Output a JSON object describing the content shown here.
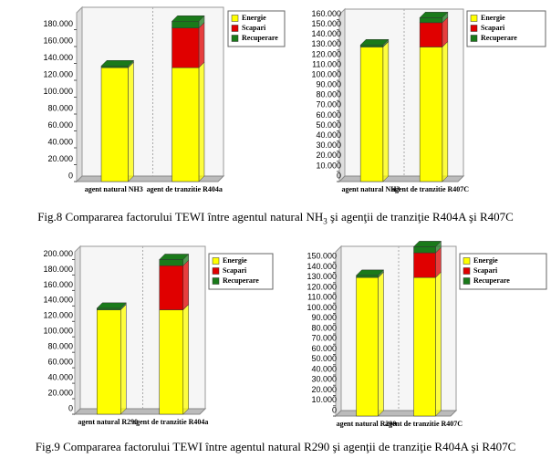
{
  "chart_data": [
    {
      "type": "bar",
      "stacked": true,
      "categories": [
        "agent natural NH3",
        "agent de tranzitie R404a"
      ],
      "series": [
        {
          "name": "Energie",
          "color": "#ffff00",
          "values": [
            135000,
            135000
          ]
        },
        {
          "name": "Scapari",
          "color": "#e00000",
          "values": [
            0,
            47000
          ]
        },
        {
          "name": "Recuperare",
          "color": "#1a7a1a",
          "values": [
            2000,
            8000
          ]
        }
      ],
      "ylim": [
        0,
        200000
      ],
      "yticks": [
        0,
        {
          "value": 20000,
          "label": "20.000"
        },
        {
          "value": 40000,
          "label": "40.000"
        },
        {
          "value": 60000,
          "label": "60.000"
        },
        {
          "value": 80000,
          "label": "80.000"
        },
        {
          "value": 100000,
          "label": "100.000"
        },
        {
          "value": 120000,
          "label": "120.000"
        },
        {
          "value": 140000,
          "label": "140.000"
        },
        {
          "value": 160000,
          "label": "160.000"
        },
        {
          "value": 180000,
          "label": "180.000"
        }
      ],
      "legend": "upper right"
    },
    {
      "type": "bar",
      "stacked": true,
      "categories": [
        "agent natural NH3",
        "agent de tranzitie R407C"
      ],
      "series": [
        {
          "name": "Energie",
          "color": "#ffff00",
          "values": [
            133000,
            133000
          ]
        },
        {
          "name": "Scapari",
          "color": "#e00000",
          "values": [
            0,
            24000
          ]
        },
        {
          "name": "Recuperare",
          "color": "#1a7a1a",
          "values": [
            2000,
            5000
          ]
        }
      ],
      "ylim": [
        0,
        165000
      ],
      "yticks": [
        0,
        {
          "value": 10000,
          "label": "10.000"
        },
        {
          "value": 20000,
          "label": "20.000"
        },
        {
          "value": 30000,
          "label": "30.000"
        },
        {
          "value": 40000,
          "label": "40.000"
        },
        {
          "value": 50000,
          "label": "50.000"
        },
        {
          "value": 60000,
          "label": "60.000"
        },
        {
          "value": 70000,
          "label": "70.000"
        },
        {
          "value": 80000,
          "label": "80.000"
        },
        {
          "value": 90000,
          "label": "90.000"
        },
        {
          "value": 100000,
          "label": "100.000"
        },
        {
          "value": 110000,
          "label": "110.000"
        },
        {
          "value": 120000,
          "label": "120.000"
        },
        {
          "value": 130000,
          "label": "130.000"
        },
        {
          "value": 140000,
          "label": "140.000"
        },
        {
          "value": 150000,
          "label": "150.000"
        },
        {
          "value": 160000,
          "label": "160.000"
        }
      ],
      "legend": "upper right"
    },
    {
      "type": "bar",
      "stacked": true,
      "categories": [
        "agent natural R290",
        "agent de tranzitie R404a"
      ],
      "series": [
        {
          "name": "Energie",
          "color": "#ffff00",
          "values": [
            135000,
            135000
          ]
        },
        {
          "name": "Scapari",
          "color": "#e00000",
          "values": [
            0,
            57000
          ]
        },
        {
          "name": "Recuperare",
          "color": "#1a7a1a",
          "values": [
            2000,
            8000
          ]
        }
      ],
      "ylim": [
        0,
        210000
      ],
      "yticks": [
        0,
        {
          "value": 20000,
          "label": "20.000"
        },
        {
          "value": 40000,
          "label": "40.000"
        },
        {
          "value": 60000,
          "label": "60.000"
        },
        {
          "value": 80000,
          "label": "80.000"
        },
        {
          "value": 100000,
          "label": "100.000"
        },
        {
          "value": 120000,
          "label": "120.000"
        },
        {
          "value": 140000,
          "label": "140.000"
        },
        {
          "value": 160000,
          "label": "160.000"
        },
        {
          "value": 180000,
          "label": "180.000"
        },
        {
          "value": 200000,
          "label": "200.000"
        }
      ],
      "legend": "upper right"
    },
    {
      "type": "bar",
      "stacked": true,
      "categories": [
        "agent natural R290",
        "agent de tranzitie R407C"
      ],
      "series": [
        {
          "name": "Energie",
          "color": "#ffff00",
          "values": [
            135000,
            135000
          ]
        },
        {
          "name": "Scapari",
          "color": "#e00000",
          "values": [
            0,
            24000
          ]
        },
        {
          "name": "Recuperare",
          "color": "#1a7a1a",
          "values": [
            2000,
            6000
          ]
        }
      ],
      "ylim": [
        0,
        160000
      ],
      "yticks": [
        0,
        {
          "value": 10000,
          "label": "10.000"
        },
        {
          "value": 20000,
          "label": "20.000"
        },
        {
          "value": 30000,
          "label": "30.000"
        },
        {
          "value": 40000,
          "label": "40.000"
        },
        {
          "value": 50000,
          "label": "50.000"
        },
        {
          "value": 60000,
          "label": "60.000"
        },
        {
          "value": 70000,
          "label": "70.000"
        },
        {
          "value": 80000,
          "label": "80.000"
        },
        {
          "value": 90000,
          "label": "90.000"
        },
        {
          "value": 100000,
          "label": "100.000"
        },
        {
          "value": 110000,
          "label": "110.000"
        },
        {
          "value": 120000,
          "label": "120.000"
        },
        {
          "value": 130000,
          "label": "130.000"
        },
        {
          "value": 140000,
          "label": "140.000"
        },
        {
          "value": 150000,
          "label": "150.000"
        }
      ],
      "legend": "upper right"
    }
  ],
  "captions": [
    {
      "before": "Fig.8 Compararea factorului TEWI între agentul natural NH",
      "sub": "3",
      "after": " şi agenţii de tranziţie R404A şi R407C"
    },
    {
      "before": "Fig.9 Compararea factorului TEWI între agentul natural R290 şi agenţii de tranziţie R404A şi R407C"
    }
  ]
}
